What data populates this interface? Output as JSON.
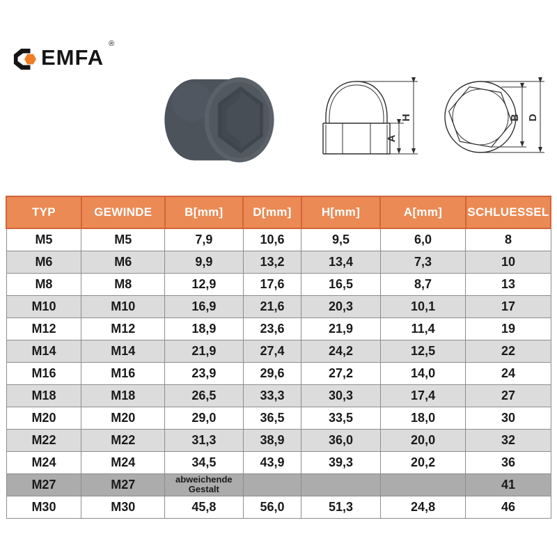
{
  "logo": {
    "text": "EMFA",
    "registered": "®",
    "icon": "hex-clamp-logo-icon",
    "colors": {
      "black": "#151515",
      "orange": "#F07D26"
    }
  },
  "figures": {
    "photo_alt": "grey hexagon protection cap",
    "cap_colors": {
      "body": "#4C535B",
      "face_ring": "#585F67",
      "face": "#515860",
      "recess": "#3E454D",
      "recess_floor": "#454C54"
    }
  },
  "drawings": {
    "side_view": {
      "labels": {
        "total_height": "H",
        "base_height": "A"
      }
    },
    "front_view": {
      "labels": {
        "width_across_flats": "B",
        "outer_diameter": "D"
      }
    }
  },
  "table": {
    "headers": [
      "TYP",
      "GEWINDE",
      "B[mm]",
      "D[mm]",
      "H[mm]",
      "A[mm]",
      "SCHLUESSEL"
    ],
    "rows": [
      {
        "typ": "M5",
        "gewinde": "M5",
        "b": "7,9",
        "d": "10,6",
        "h": "9,5",
        "a": "6,0",
        "schluessel": "8"
      },
      {
        "typ": "M6",
        "gewinde": "M6",
        "b": "9,9",
        "d": "13,2",
        "h": "13,4",
        "a": "7,3",
        "schluessel": "10"
      },
      {
        "typ": "M8",
        "gewinde": "M8",
        "b": "12,9",
        "d": "17,6",
        "h": "16,5",
        "a": "8,7",
        "schluessel": "13"
      },
      {
        "typ": "M10",
        "gewinde": "M10",
        "b": "16,9",
        "d": "21,6",
        "h": "20,3",
        "a": "10,1",
        "schluessel": "17"
      },
      {
        "typ": "M12",
        "gewinde": "M12",
        "b": "18,9",
        "d": "23,6",
        "h": "21,9",
        "a": "11,4",
        "schluessel": "19"
      },
      {
        "typ": "M14",
        "gewinde": "M14",
        "b": "21,9",
        "d": "27,4",
        "h": "24,2",
        "a": "12,5",
        "schluessel": "22"
      },
      {
        "typ": "M16",
        "gewinde": "M16",
        "b": "23,9",
        "d": "29,6",
        "h": "27,2",
        "a": "14,0",
        "schluessel": "24"
      },
      {
        "typ": "M18",
        "gewinde": "M18",
        "b": "26,5",
        "d": "33,3",
        "h": "30,3",
        "a": "17,4",
        "schluessel": "27"
      },
      {
        "typ": "M20",
        "gewinde": "M20",
        "b": "29,0",
        "d": "36,5",
        "h": "33,5",
        "a": "18,0",
        "schluessel": "30"
      },
      {
        "typ": "M22",
        "gewinde": "M22",
        "b": "31,3",
        "d": "38,9",
        "h": "36,0",
        "a": "20,0",
        "schluessel": "32"
      },
      {
        "typ": "M24",
        "gewinde": "M24",
        "b": "34,5",
        "d": "43,9",
        "h": "39,3",
        "a": "20,2",
        "schluessel": "36"
      },
      {
        "typ": "M27",
        "gewinde": "M27",
        "b": "abweichende Gestalt",
        "d": "",
        "h": "",
        "a": "",
        "schluessel": "41",
        "special": true
      },
      {
        "typ": "M30",
        "gewinde": "M30",
        "b": "45,8",
        "d": "56,0",
        "h": "51,3",
        "a": "24,8",
        "schluessel": "46"
      }
    ],
    "colors": {
      "header_bg": "#EB8A54",
      "header_border": "#D2643A",
      "row_alt_bg": "#DCDCDC",
      "special_row_bg": "#ACACAC",
      "grid": "#8C8C8C"
    }
  }
}
